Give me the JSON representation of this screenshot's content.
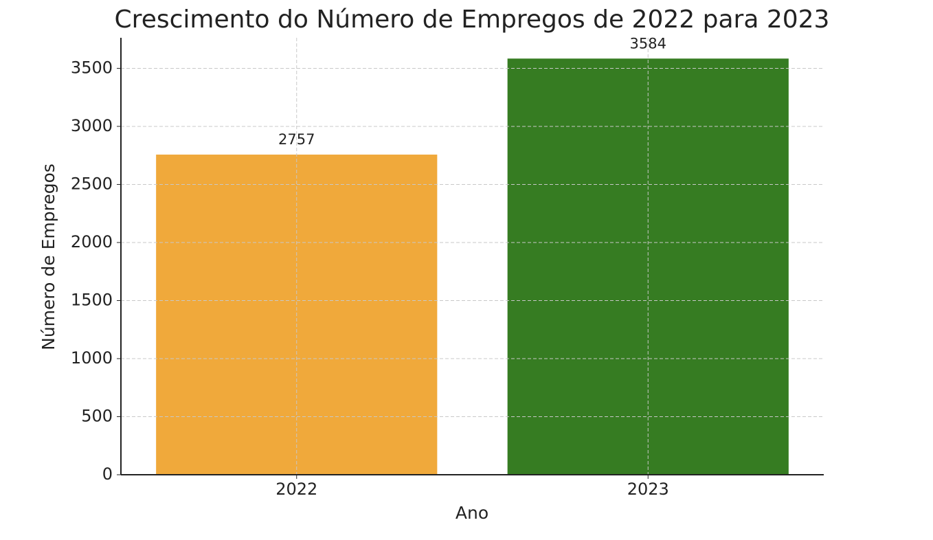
{
  "chart_data": {
    "type": "bar",
    "title": "Crescimento do Número de Empregos de 2022 para 2023",
    "x_label": "Ano",
    "y_label": "Número de Empregos",
    "categories": [
      "2022",
      "2023"
    ],
    "values": [
      2757,
      3584
    ],
    "colors": [
      "#f0a93b",
      "#367c22"
    ],
    "ylim": [
      0,
      3763
    ],
    "yticks": [
      0,
      500,
      1000,
      1500,
      2000,
      2500,
      3000,
      3500
    ],
    "grid": true
  }
}
